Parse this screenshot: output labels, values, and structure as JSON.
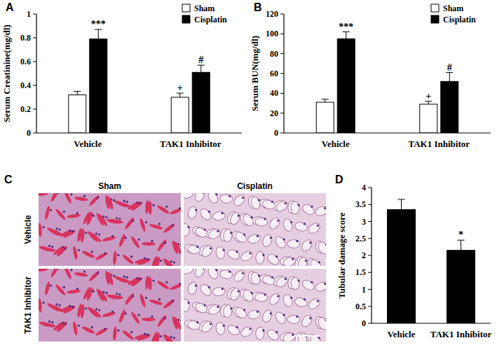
{
  "chart_data": [
    {
      "type": "bar",
      "title": "A",
      "y_label": "Serum Creatinine(mg/dl)",
      "categories": [
        "Vehicle",
        "TAK1 Inhibitor"
      ],
      "series": [
        {
          "name": "Sham",
          "color": "#ffffff",
          "values": [
            0.32,
            0.3
          ],
          "errors": [
            0.03,
            0.035
          ],
          "annotations": [
            null,
            "+"
          ]
        },
        {
          "name": "Cisplatin",
          "color": "#000000",
          "values": [
            0.79,
            0.51
          ],
          "errors": [
            0.08,
            0.06
          ],
          "annotations": [
            "***",
            "#"
          ]
        }
      ],
      "ylim": [
        0,
        1
      ],
      "yticks": [
        0,
        0.2,
        0.4,
        0.6,
        0.8,
        1
      ],
      "grid": false,
      "legend": "upper right"
    },
    {
      "type": "bar",
      "title": "B",
      "y_label": "Serum BUN(mg/dl)",
      "categories": [
        "Vehicle",
        "TAK1 Inhibitor"
      ],
      "series": [
        {
          "name": "Sham",
          "color": "#ffffff",
          "values": [
            31,
            29
          ],
          "errors": [
            3,
            3
          ],
          "annotations": [
            null,
            "+"
          ]
        },
        {
          "name": "Cisplatin",
          "color": "#000000",
          "values": [
            95,
            52
          ],
          "errors": [
            7,
            9
          ],
          "annotations": [
            "***",
            "#"
          ]
        }
      ],
      "ylim": [
        0,
        120
      ],
      "yticks": [
        0,
        20,
        40,
        60,
        80,
        100,
        120
      ],
      "grid": false,
      "legend": "upper right"
    },
    {
      "type": "bar",
      "title": "D",
      "y_label": "Tubular damage score",
      "categories": [
        "Vehicle",
        "TAK1 Inhibitor"
      ],
      "values": [
        3.35,
        2.15
      ],
      "errors": [
        0.3,
        0.3
      ],
      "annotations": [
        null,
        "*"
      ],
      "color": "#000000",
      "ylim": [
        0,
        4
      ],
      "yticks": [
        0,
        0.5,
        1,
        1.5,
        2,
        2.5,
        3,
        3.5,
        4
      ],
      "grid": false
    }
  ],
  "image_panel": {
    "label": "C",
    "columns": [
      "Sham",
      "Cisplatin"
    ],
    "rows": [
      "Vehicle",
      "TAK1 Inhibitor"
    ]
  }
}
